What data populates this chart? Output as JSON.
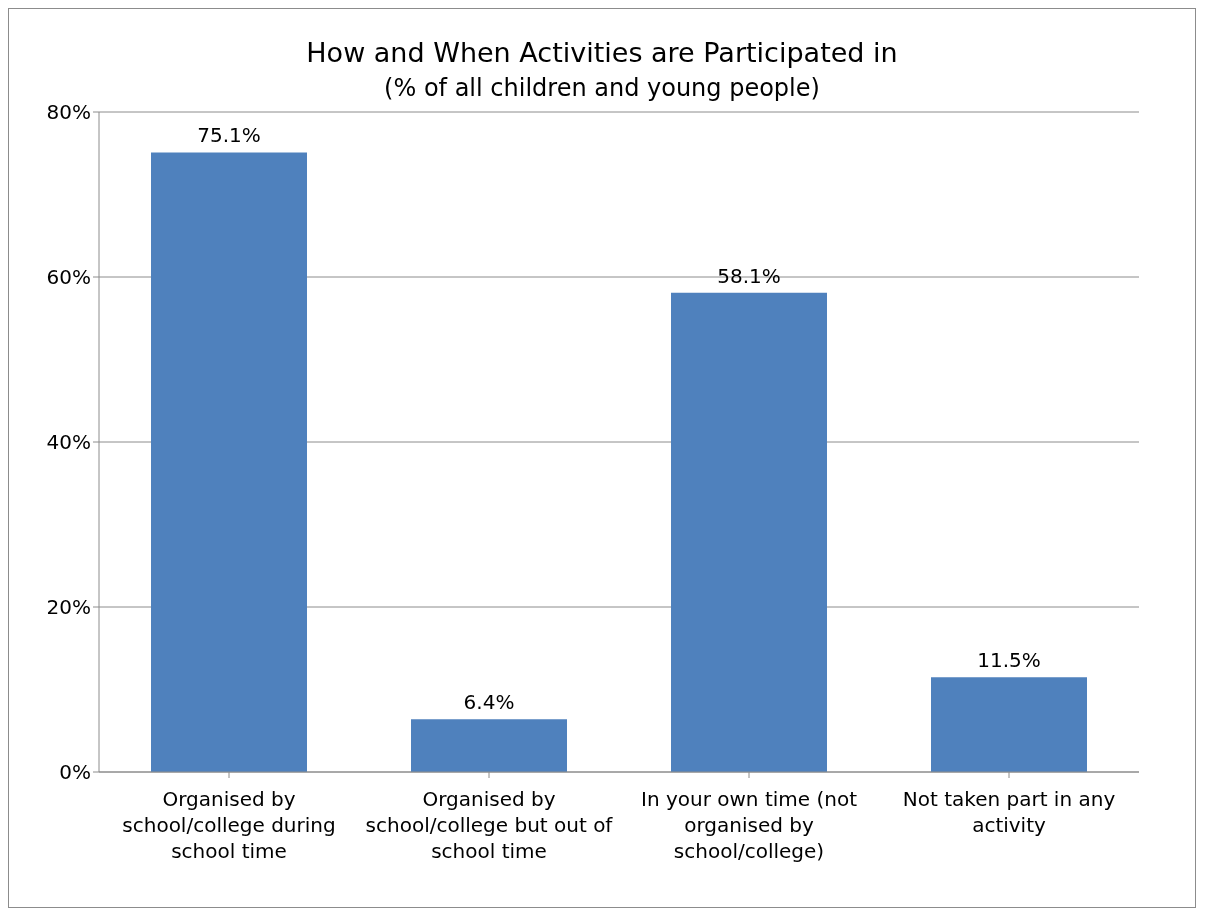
{
  "chart_data": {
    "type": "bar",
    "title": "How and When Activities are Participated in",
    "subtitle": "(% of all children and young people)",
    "categories": [
      "Organised by school/college during school time",
      "Organised by school/college but out of school time",
      "In your own time (not organised by school/college)",
      "Not taken part in any activity"
    ],
    "values": [
      75.1,
      6.4,
      58.1,
      11.5
    ],
    "value_labels": [
      "75.1%",
      "6.4%",
      "58.1%",
      "11.5%"
    ],
    "color": "#4f81bd",
    "ylim": [
      0,
      80
    ],
    "yticks": [
      {
        "value": 0,
        "label": "0%"
      },
      {
        "value": 20,
        "label": "20%"
      },
      {
        "value": 40,
        "label": "40%"
      },
      {
        "value": 60,
        "label": "60%"
      },
      {
        "value": 80,
        "label": "80%"
      }
    ],
    "grid": "y",
    "legend": false
  }
}
